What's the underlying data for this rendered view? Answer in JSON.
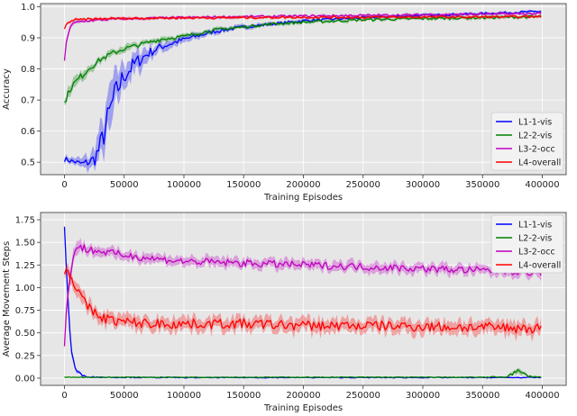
{
  "chart_data": [
    {
      "type": "line",
      "title": "",
      "xlabel": "Training Episodes",
      "ylabel": "Accuracy",
      "xlim": [
        -20000,
        420000
      ],
      "ylim": [
        0.46,
        1.01
      ],
      "xticks": [
        0,
        50000,
        100000,
        150000,
        200000,
        250000,
        300000,
        350000,
        400000
      ],
      "yticks": [
        0.5,
        0.6,
        0.7,
        0.8,
        0.9,
        1.0
      ],
      "ytick_labels": [
        "0.5",
        "0.6",
        "0.7",
        "0.8",
        "0.9",
        "1.0"
      ],
      "grid": true,
      "legend": "center-right",
      "series": [
        {
          "name": "L1-1-vis",
          "color": "#0000ff",
          "x": [
            0,
            5000,
            10000,
            15000,
            20000,
            25000,
            30000,
            35000,
            40000,
            45000,
            50000,
            60000,
            70000,
            80000,
            100000,
            125000,
            150000,
            175000,
            200000,
            250000,
            300000,
            350000,
            400000
          ],
          "y": [
            0.51,
            0.505,
            0.5,
            0.495,
            0.5,
            0.51,
            0.55,
            0.62,
            0.69,
            0.74,
            0.78,
            0.82,
            0.85,
            0.87,
            0.895,
            0.92,
            0.935,
            0.945,
            0.955,
            0.965,
            0.972,
            0.978,
            0.985
          ],
          "band": [
            0.01,
            0.01,
            0.01,
            0.015,
            0.02,
            0.03,
            0.05,
            0.06,
            0.06,
            0.05,
            0.04,
            0.03,
            0.02,
            0.015,
            0.01,
            0.008,
            0.006,
            0.005,
            0.005,
            0.004,
            0.004,
            0.004,
            0.004
          ]
        },
        {
          "name": "L2-2-vis",
          "color": "#008000",
          "x": [
            0,
            5000,
            10000,
            20000,
            30000,
            40000,
            50000,
            60000,
            70000,
            80000,
            100000,
            125000,
            150000,
            175000,
            200000,
            250000,
            300000,
            350000,
            400000
          ],
          "y": [
            0.69,
            0.74,
            0.76,
            0.8,
            0.83,
            0.85,
            0.865,
            0.875,
            0.885,
            0.895,
            0.905,
            0.925,
            0.935,
            0.945,
            0.95,
            0.958,
            0.962,
            0.965,
            0.968
          ],
          "band": [
            0.01,
            0.015,
            0.015,
            0.012,
            0.01,
            0.01,
            0.01,
            0.008,
            0.008,
            0.008,
            0.006,
            0.006,
            0.005,
            0.005,
            0.005,
            0.005,
            0.005,
            0.005,
            0.005
          ]
        },
        {
          "name": "L3-2-occ",
          "color": "#bf00bf",
          "x": [
            0,
            2000,
            5000,
            10000,
            20000,
            40000,
            60000,
            100000,
            150000,
            200000,
            250000,
            300000,
            350000,
            400000
          ],
          "y": [
            0.82,
            0.9,
            0.94,
            0.95,
            0.955,
            0.96,
            0.962,
            0.965,
            0.968,
            0.97,
            0.972,
            0.974,
            0.976,
            0.978
          ],
          "band": [
            0.01,
            0.01,
            0.008,
            0.005,
            0.004,
            0.004,
            0.004,
            0.004,
            0.004,
            0.004,
            0.004,
            0.004,
            0.004,
            0.004
          ]
        },
        {
          "name": "L4-overall",
          "color": "#ff0000",
          "x": [
            0,
            3000,
            6000,
            10000,
            20000,
            40000,
            60000,
            100000,
            150000,
            200000,
            250000,
            300000,
            350000,
            400000
          ],
          "y": [
            0.93,
            0.95,
            0.955,
            0.958,
            0.96,
            0.962,
            0.963,
            0.964,
            0.965,
            0.966,
            0.966,
            0.967,
            0.967,
            0.968
          ],
          "band": [
            0.005,
            0.005,
            0.004,
            0.004,
            0.004,
            0.004,
            0.004,
            0.004,
            0.004,
            0.004,
            0.004,
            0.004,
            0.004,
            0.004
          ]
        }
      ]
    },
    {
      "type": "line",
      "title": "",
      "xlabel": "Training Episodes",
      "ylabel": "Average Movement Steps",
      "xlim": [
        -20000,
        420000
      ],
      "ylim": [
        -0.08,
        1.83
      ],
      "xticks": [
        0,
        50000,
        100000,
        150000,
        200000,
        250000,
        300000,
        350000,
        400000
      ],
      "yticks": [
        0.0,
        0.25,
        0.5,
        0.75,
        1.0,
        1.25,
        1.5,
        1.75
      ],
      "ytick_labels": [
        "0.00",
        "0.25",
        "0.50",
        "0.75",
        "1.00",
        "1.25",
        "1.50",
        "1.75"
      ],
      "grid": true,
      "legend": "upper-right",
      "series": [
        {
          "name": "L1-1-vis",
          "color": "#0000ff",
          "x": [
            0,
            2000,
            4000,
            6000,
            8000,
            10000,
            15000,
            20000,
            30000,
            50000,
            100000,
            200000,
            300000,
            400000
          ],
          "y": [
            1.67,
            1.1,
            0.6,
            0.3,
            0.15,
            0.08,
            0.03,
            0.015,
            0.01,
            0.008,
            0.006,
            0.006,
            0.006,
            0.006
          ],
          "band": [
            0.02,
            0.05,
            0.05,
            0.04,
            0.03,
            0.02,
            0.01,
            0.008,
            0.006,
            0.005,
            0.005,
            0.005,
            0.005,
            0.005
          ]
        },
        {
          "name": "L2-2-vis",
          "color": "#008000",
          "x": [
            0,
            50000,
            100000,
            150000,
            200000,
            250000,
            300000,
            350000,
            370000,
            375000,
            380000,
            385000,
            390000,
            400000
          ],
          "y": [
            0.01,
            0.01,
            0.01,
            0.01,
            0.01,
            0.01,
            0.01,
            0.01,
            0.015,
            0.05,
            0.08,
            0.04,
            0.02,
            0.01
          ],
          "band": [
            0.005,
            0.005,
            0.005,
            0.005,
            0.005,
            0.005,
            0.005,
            0.005,
            0.008,
            0.02,
            0.03,
            0.02,
            0.01,
            0.005
          ]
        },
        {
          "name": "L3-2-occ",
          "color": "#bf00bf",
          "x": [
            0,
            2000,
            5000,
            8000,
            12000,
            20000,
            30000,
            50000,
            75000,
            100000,
            150000,
            200000,
            250000,
            300000,
            350000,
            400000
          ],
          "y": [
            0.35,
            0.8,
            1.2,
            1.4,
            1.45,
            1.42,
            1.4,
            1.36,
            1.32,
            1.29,
            1.27,
            1.25,
            1.23,
            1.21,
            1.19,
            1.17
          ],
          "band": [
            0.05,
            0.08,
            0.08,
            0.07,
            0.06,
            0.06,
            0.05,
            0.05,
            0.05,
            0.05,
            0.05,
            0.05,
            0.05,
            0.05,
            0.05,
            0.05
          ]
        },
        {
          "name": "L4-overall",
          "color": "#ff0000",
          "x": [
            0,
            2000,
            5000,
            8000,
            12000,
            16000,
            20000,
            25000,
            30000,
            40000,
            50000,
            75000,
            100000,
            150000,
            200000,
            250000,
            300000,
            350000,
            400000
          ],
          "y": [
            1.18,
            1.2,
            1.15,
            1.05,
            0.95,
            0.85,
            0.78,
            0.72,
            0.68,
            0.64,
            0.62,
            0.6,
            0.6,
            0.6,
            0.58,
            0.58,
            0.57,
            0.56,
            0.55
          ],
          "band": [
            0.04,
            0.06,
            0.07,
            0.07,
            0.07,
            0.07,
            0.07,
            0.07,
            0.07,
            0.07,
            0.07,
            0.07,
            0.07,
            0.07,
            0.07,
            0.07,
            0.07,
            0.07,
            0.07
          ]
        }
      ]
    }
  ]
}
